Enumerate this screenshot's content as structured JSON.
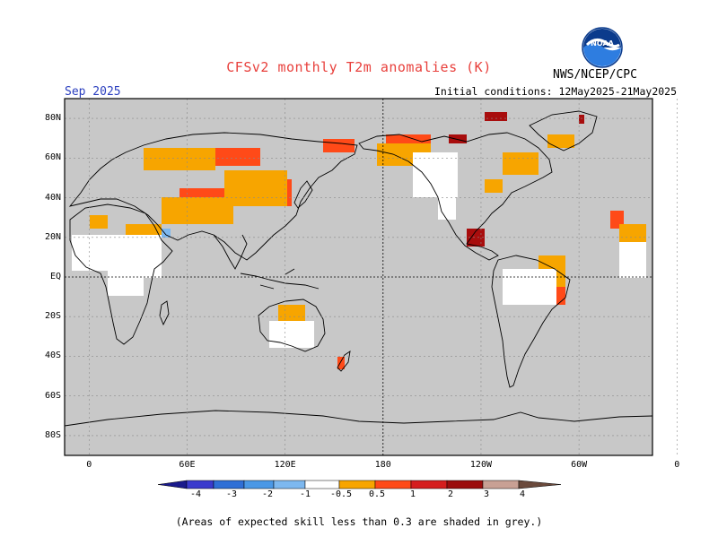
{
  "title": "CFSv2 monthly T2m anomalies (K)",
  "agency": "NWS/NCEP/CPC",
  "logo_text": "NOAA",
  "valid_month": "Sep 2025",
  "initial_conditions": "Initial conditions: 12May2025-21May2025",
  "lat_labels": [
    "80N",
    "60N",
    "40N",
    "20N",
    "EQ",
    "20S",
    "40S",
    "60S",
    "80S"
  ],
  "lon_labels": [
    "0",
    "60E",
    "120E",
    "180",
    "120W",
    "60W",
    "0"
  ],
  "colorbar": {
    "labels": [
      "-4",
      "-3",
      "-2",
      "-1",
      "-0.5",
      "0.5",
      "1",
      "2",
      "3",
      "4"
    ],
    "colors": [
      "#1a1a8c",
      "#3a3acd",
      "#2f6fd6",
      "#4a98e6",
      "#7db8ef",
      "#ffffff",
      "#f7a500",
      "#ff4a18",
      "#d51e1e",
      "#9b0d0d",
      "#c8a094",
      "#6b4a3c"
    ]
  },
  "note": "(Areas of expected skill less than 0.3 are shaded in grey.)",
  "colors": {
    "skill_mask": "#c8c8c8",
    "neutral": "#ffffff",
    "warm_0_5_1": "#f7a500",
    "warm_1_2": "#ff4a18",
    "warm_2_3": "#a80d0d",
    "cool_0_5_1": "#7db8ef",
    "title": "#e8403c",
    "date": "#2b3fbf"
  }
}
